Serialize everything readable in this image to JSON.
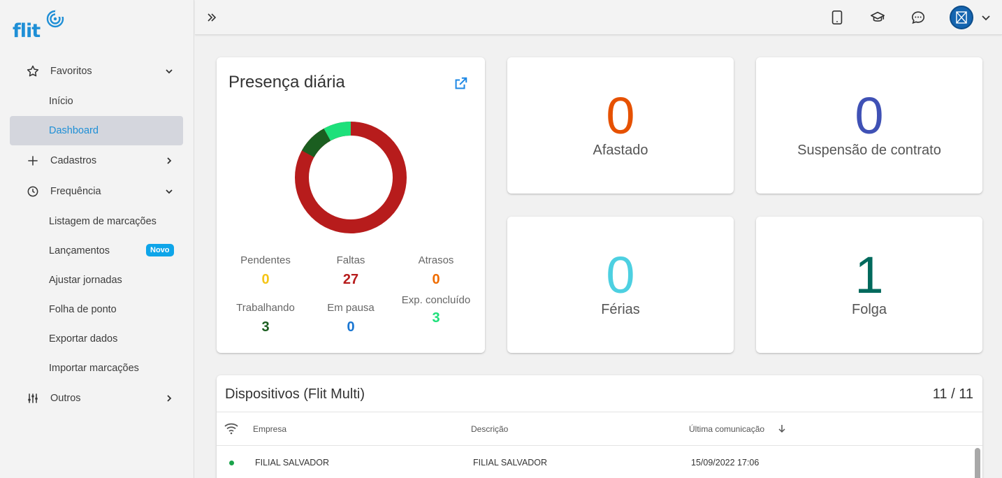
{
  "brand": {
    "logo_text": "flit"
  },
  "sidebar": {
    "favoritos": {
      "label": "Favoritos",
      "icon": "star-icon"
    },
    "inicio": "Início",
    "dashboard": "Dashboard",
    "cadastros": {
      "label": "Cadastros",
      "icon": "plus-icon"
    },
    "frequencia": {
      "label": "Frequência",
      "icon": "clock-icon"
    },
    "listagem": "Listagem de marcações",
    "lancamentos": "Lançamentos",
    "lancamentos_badge": "Novo",
    "ajustar": "Ajustar jornadas",
    "folha": "Folha de ponto",
    "exportar": "Exportar dados",
    "importar": "Importar marcações",
    "outros": {
      "label": "Outros",
      "icon": "sliders-icon"
    }
  },
  "presence": {
    "title": "Presença diária",
    "stats": {
      "pendentes": {
        "label": "Pendentes",
        "value": "0",
        "color": "#f5c518"
      },
      "faltas": {
        "label": "Faltas",
        "value": "27",
        "color": "#b71c1c"
      },
      "atrasos": {
        "label": "Atrasos",
        "value": "0",
        "color": "#ef6c00"
      },
      "trabalhando": {
        "label": "Trabalhando",
        "value": "3",
        "color": "#1b5e20"
      },
      "em_pausa": {
        "label": "Em pausa",
        "value": "0",
        "color": "#1976d2"
      },
      "exp_concluido": {
        "label": "Exp. concluído",
        "value": "3",
        "color": "#1de07a"
      }
    }
  },
  "metrics": {
    "afastado": {
      "label": "Afastado",
      "value": "0",
      "color": "#e65100"
    },
    "suspensao": {
      "label": "Suspensão de contrato",
      "value": "0",
      "color": "#3f51b5"
    },
    "ferias": {
      "label": "Férias",
      "value": "0",
      "color": "#4dd0e1"
    },
    "folga": {
      "label": "Folga",
      "value": "1",
      "color": "#00695c"
    }
  },
  "devices": {
    "title": "Dispositivos (Flit Multi)",
    "count": "11 / 11",
    "columns": {
      "empresa": "Empresa",
      "descricao": "Descrição",
      "ultima": "Última comunicação"
    },
    "rows": [
      {
        "empresa": "FILIAL SALVADOR",
        "descricao": "FILIAL SALVADOR",
        "ultima": "15/09/2022 17:06",
        "status_color": "#1aa34a"
      }
    ]
  }
}
